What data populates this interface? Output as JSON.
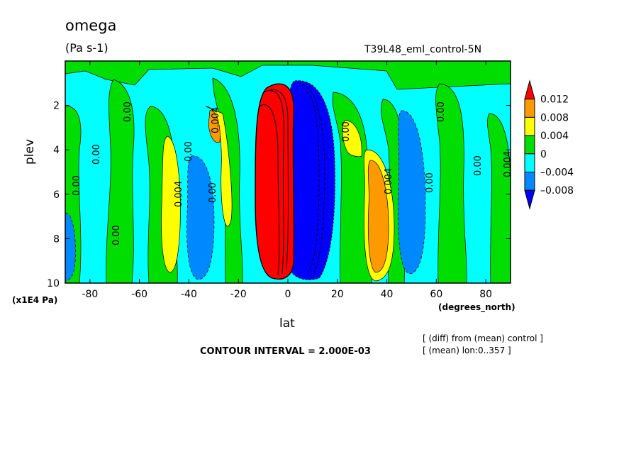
{
  "chart_data": {
    "type": "heatmap",
    "title": "omega",
    "units": "(Pa s-1)",
    "run_label": "T39L48_eml_control-5N",
    "xlabel": "lat",
    "x_units": "(degrees_north)",
    "ylabel": "plev",
    "y_units": "(x1E4 Pa)",
    "xlim": [
      -90,
      90
    ],
    "ylim": [
      0,
      10
    ],
    "y_reversed": true,
    "x_ticks": [
      "-80",
      "-60",
      "-40",
      "-20",
      "0",
      "20",
      "40",
      "60",
      "80"
    ],
    "y_ticks": [
      "2",
      "4",
      "6",
      "8",
      "10"
    ],
    "contour_interval_text": "CONTOUR INTERVAL = 2.000E-03",
    "annotations": [
      "[ (diff) from (mean) control ]",
      "[ (mean) lon:0..357 ]"
    ],
    "colorbar": {
      "labels": [
        "0.012",
        "0.008",
        "0.004",
        "0",
        "–0.004",
        "–0.008"
      ],
      "colors": [
        "#ff0000",
        "#ff9900",
        "#ffff00",
        "#00dd00",
        "#00ffff",
        "#0088ff",
        "#0000ff"
      ]
    },
    "contour_labels": [
      "0.00",
      "0.004",
      "0.00",
      "0.00",
      "0.004",
      "0.00",
      "0.00",
      "0.00",
      "0.004",
      "0.00",
      "0.00",
      "0.00",
      "0.004",
      "0.00"
    ],
    "background_value_class": "-0.004..0",
    "features": [
      {
        "name": "equatorial ascent (negative)",
        "lat_range": [
          2,
          18
        ],
        "plev_range": [
          1,
          9.8
        ],
        "class": "< -0.008"
      },
      {
        "name": "equatorial descent (positive)",
        "lat_range": [
          -14,
          2
        ],
        "plev_range": [
          1,
          9.8
        ],
        "class": "> 0.012"
      },
      {
        "name": "subtropical positive NH",
        "lat_range": [
          28,
          42
        ],
        "plev_range": [
          3,
          9.6
        ],
        "class": "0.004..0.012"
      },
      {
        "name": "subtropical positive SH",
        "lat_range": [
          -44,
          -28
        ],
        "plev_range": [
          2,
          9.5
        ],
        "class": "0.004..0.008"
      }
    ]
  }
}
